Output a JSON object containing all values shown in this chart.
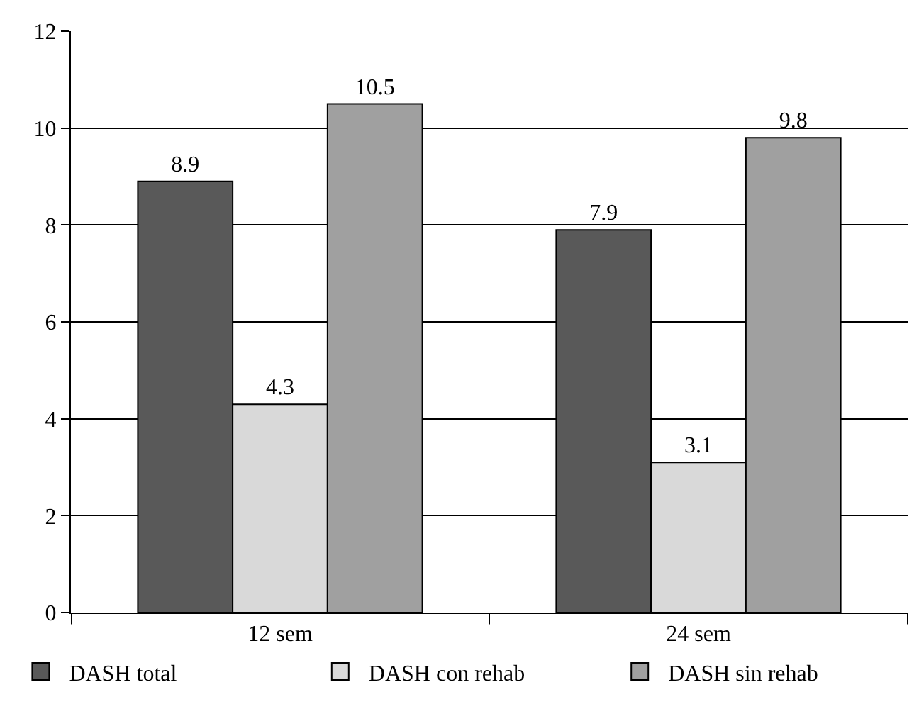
{
  "chart_data": {
    "type": "bar",
    "categories": [
      "12 sem",
      "24 sem"
    ],
    "series": [
      {
        "name": "DASH total",
        "color": "#595959",
        "values": [
          8.9,
          7.9
        ]
      },
      {
        "name": "DASH con rehab",
        "color": "#d9d9d9",
        "values": [
          4.3,
          3.1
        ]
      },
      {
        "name": "DASH sin rehab",
        "color": "#a0a0a0",
        "values": [
          10.5,
          9.8
        ]
      }
    ],
    "ylim": [
      0,
      12
    ],
    "yticks": [
      0,
      2,
      4,
      6,
      8,
      10,
      12
    ],
    "grid": "y",
    "legend": "bottom",
    "data_labels": true
  }
}
